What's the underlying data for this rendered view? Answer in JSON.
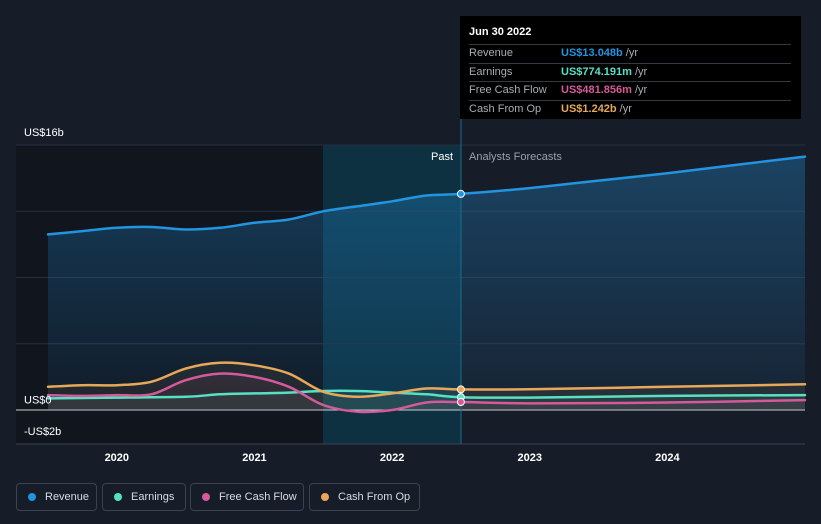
{
  "chart_data": {
    "type": "line",
    "y_axis": {
      "min": -2,
      "max": 16,
      "unit": "US$ billions",
      "labels": [
        {
          "value": 16,
          "text": "US$16b"
        },
        {
          "value": 0,
          "text": "US$0"
        },
        {
          "value": -2,
          "text": "-US$2b"
        }
      ]
    },
    "x_axis": {
      "min": 2019.5,
      "max": 2025.0,
      "ticks": [
        "2020",
        "2021",
        "2022",
        "2023",
        "2024"
      ]
    },
    "grid": true,
    "past_label": "Past",
    "forecast_label": "Analysts Forecasts",
    "highlight_x": 2022.5,
    "series": [
      {
        "name": "Revenue",
        "color": "#2394df",
        "fill": true,
        "x": [
          2019.5,
          2019.75,
          2020.0,
          2020.25,
          2020.5,
          2020.75,
          2021.0,
          2021.25,
          2021.5,
          2021.75,
          2022.0,
          2022.25,
          2022.5,
          2023.0,
          2023.5,
          2024.0,
          2024.5,
          2025.0
        ],
        "y": [
          10.6,
          10.8,
          11.0,
          11.05,
          10.9,
          11.0,
          11.3,
          11.5,
          12.0,
          12.3,
          12.6,
          12.95,
          13.048,
          13.4,
          13.85,
          14.3,
          14.8,
          15.3
        ]
      },
      {
        "name": "Earnings",
        "color": "#58e0c5",
        "x": [
          2019.5,
          2020.0,
          2020.5,
          2020.75,
          2021.0,
          2021.25,
          2021.5,
          2021.75,
          2022.0,
          2022.25,
          2022.5,
          2023.0,
          2024.0,
          2025.0
        ],
        "y": [
          0.7,
          0.75,
          0.8,
          0.95,
          1.0,
          1.05,
          1.15,
          1.15,
          1.05,
          0.95,
          0.774,
          0.75,
          0.85,
          0.9
        ]
      },
      {
        "name": "Free Cash Flow",
        "color": "#d55a9a",
        "x": [
          2019.5,
          2019.75,
          2020.0,
          2020.25,
          2020.5,
          2020.75,
          2021.0,
          2021.25,
          2021.5,
          2021.75,
          2022.0,
          2022.25,
          2022.5,
          2023.0,
          2024.0,
          2025.0
        ],
        "y": [
          0.9,
          0.85,
          0.9,
          0.95,
          1.8,
          2.2,
          2.0,
          1.4,
          0.3,
          -0.1,
          0.0,
          0.45,
          0.482,
          0.4,
          0.45,
          0.6
        ]
      },
      {
        "name": "Cash From Op",
        "color": "#e8a85a",
        "x": [
          2019.5,
          2019.75,
          2020.0,
          2020.25,
          2020.5,
          2020.75,
          2021.0,
          2021.25,
          2021.5,
          2021.75,
          2022.0,
          2022.25,
          2022.5,
          2023.0,
          2024.0,
          2025.0
        ],
        "y": [
          1.4,
          1.5,
          1.5,
          1.7,
          2.5,
          2.85,
          2.7,
          2.2,
          1.1,
          0.8,
          1.0,
          1.3,
          1.242,
          1.25,
          1.4,
          1.55
        ]
      }
    ]
  },
  "tooltip": {
    "date": "Jun 30 2022",
    "rows": [
      {
        "label": "Revenue",
        "value": "US$13.048b",
        "unit": "/yr",
        "color": "#2394df"
      },
      {
        "label": "Earnings",
        "value": "US$774.191m",
        "unit": "/yr",
        "color": "#58e0c5"
      },
      {
        "label": "Free Cash Flow",
        "value": "US$481.856m",
        "unit": "/yr",
        "color": "#d55a9a"
      },
      {
        "label": "Cash From Op",
        "value": "US$1.242b",
        "unit": "/yr",
        "color": "#e8a85a"
      }
    ]
  },
  "legend": [
    {
      "label": "Revenue",
      "color": "#2394df"
    },
    {
      "label": "Earnings",
      "color": "#58e0c5"
    },
    {
      "label": "Free Cash Flow",
      "color": "#d55a9a"
    },
    {
      "label": "Cash From Op",
      "color": "#e8a85a"
    }
  ]
}
